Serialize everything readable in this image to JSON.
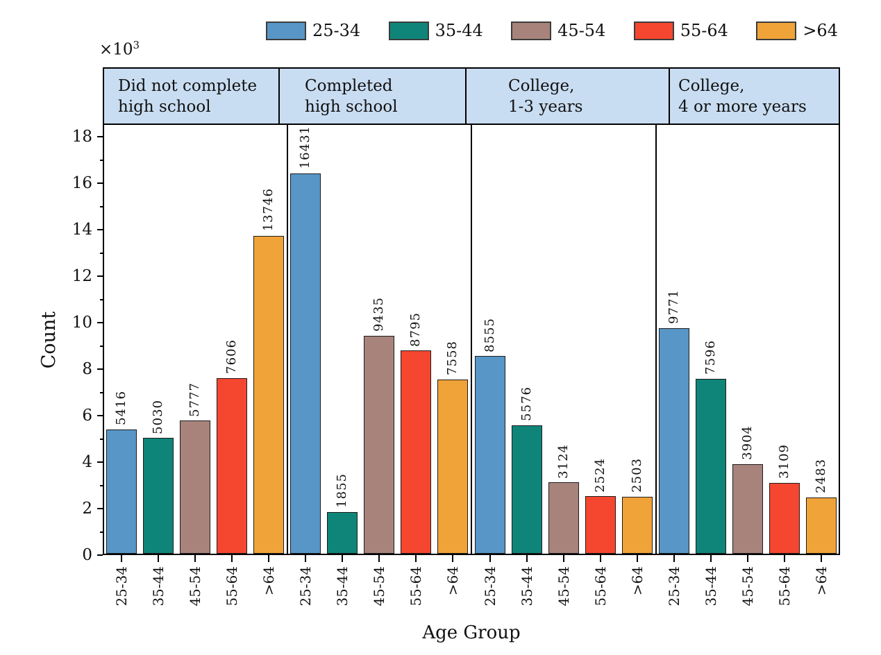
{
  "chart_data": {
    "type": "bar",
    "title": "",
    "xlabel": "Age Group",
    "ylabel": "Count",
    "y_multiplier": {
      "base": "×10",
      "exp": "3"
    },
    "ylim": [
      0,
      18
    ],
    "y_ticks": [
      0,
      2,
      4,
      6,
      8,
      10,
      12,
      14,
      16,
      18
    ],
    "y_minor_ticks": [
      1,
      3,
      5,
      7,
      9,
      11,
      13,
      15,
      17
    ],
    "grid": false,
    "legend_position": "top",
    "panels": [
      {
        "label_lines": [
          "Did not complete",
          "high school"
        ]
      },
      {
        "label_lines": [
          "Completed",
          "high school"
        ]
      },
      {
        "label_lines": [
          "College,",
          "1-3 years"
        ]
      },
      {
        "label_lines": [
          "College,",
          "4 or more years"
        ]
      }
    ],
    "categories": [
      "25-34",
      "35-44",
      "45-54",
      "55-64",
      ">64"
    ],
    "series": [
      {
        "name": "25-34",
        "color": "#5796c6",
        "values": [
          5416,
          16431,
          8555,
          9771
        ]
      },
      {
        "name": "35-44",
        "color": "#0e8578",
        "values": [
          5030,
          1855,
          5576,
          7596
        ]
      },
      {
        "name": "45-54",
        "color": "#a8837c",
        "values": [
          5777,
          9435,
          3124,
          3904
        ]
      },
      {
        "name": "55-64",
        "color": "#f54630",
        "values": [
          7606,
          8795,
          2524,
          3109
        ]
      },
      {
        "name": ">64",
        "color": "#f0a338",
        "values": [
          13746,
          7558,
          2503,
          2483
        ]
      }
    ],
    "colors": {
      "header_bg": "#c9ddf2",
      "bar_outline": "#1c1c1c",
      "axis": "#000000",
      "text": "#111111"
    }
  }
}
